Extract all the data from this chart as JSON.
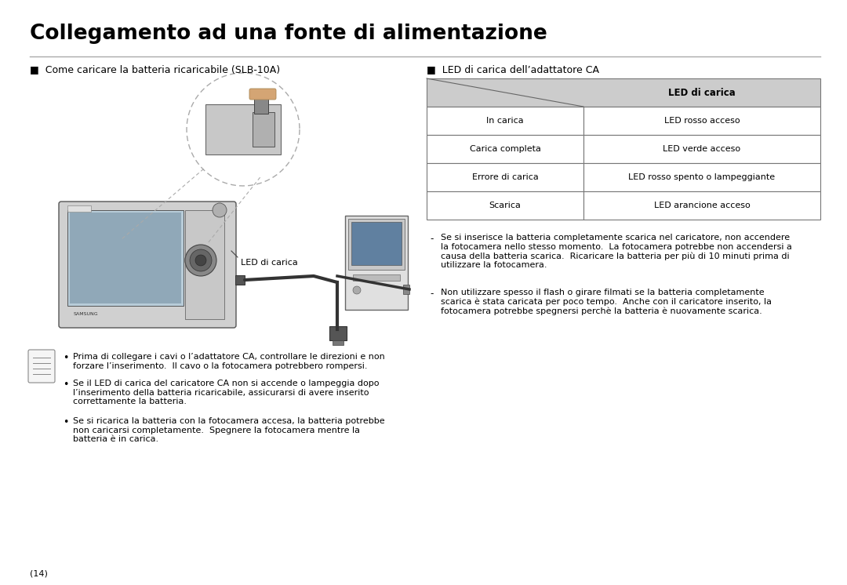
{
  "title": "Collegamento ad una fonte di alimentazione",
  "bg_color": "#ffffff",
  "title_color": "#000000",
  "title_fontsize": 19,
  "left_section_header": "■  Come caricare la batteria ricaricabile (SLB-10A)",
  "right_section_header": "■  LED di carica dell’adattatore CA",
  "table_rows": [
    [
      "In carica",
      "LED rosso acceso"
    ],
    [
      "Carica completa",
      "LED verde acceso"
    ],
    [
      "Errore di carica",
      "LED rosso spento o lampeggiante"
    ],
    [
      "Scarica",
      "LED arancione acceso"
    ]
  ],
  "table_header_bg": "#cccccc",
  "table_border_color": "#777777",
  "led_di_carica_label": "LED di carica",
  "led_di_carica_caption": "LED di carica",
  "bullet_notes": [
    "Prima di collegare i cavi o l’adattatore CA, controllare le direzioni e non\nforzare l’inserimento.  Il cavo o la fotocamera potrebbero rompersi.",
    "Se il LED di carica del caricatore CA non si accende o lampeggia dopo\nl’inserimento della batteria ricaricabile, assicurarsi di avere inserito\ncorrettamente la batteria.",
    "Se si ricarica la batteria con la fotocamera accesa, la batteria potrebbe\nnon caricarsi completamente.  Spegnere la fotocamera mentre la\nbatteria è in carica."
  ],
  "dash_note1_dash": "-",
  "dash_note1": "Se si inserisce la batteria completamente scarica nel caricatore, non accendere\nla fotocamera nello stesso momento.  La fotocamera potrebbe non accendersi a\ncausa della batteria scarica.  Ricaricare la batteria per più di 10 minuti prima di\nutilizzare la fotocamera.",
  "dash_note2_dash": "-",
  "dash_note2": "Non utilizzare spesso il flash o girare filmati se la batteria completamente\nscarica è stata caricata per poco tempo.  Anche con il caricatore inserito, la\nfotocamera potrebbe spegnersi perchè la batteria è nuovamente scarica.",
  "page_number": "(14)",
  "font_size_body": 8.5,
  "font_size_small": 8.0,
  "font_size_header": 9.0
}
